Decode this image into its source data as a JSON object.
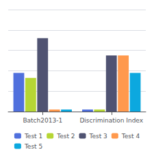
{
  "chart_data": {
    "type": "bar",
    "categories": [
      "Batch2013-1",
      "Discrimination Index"
    ],
    "series": [
      {
        "name": "Test 1",
        "values": [
          0.38,
          0.02
        ]
      },
      {
        "name": "Test 2",
        "values": [
          0.33,
          0.02
        ]
      },
      {
        "name": "Test 3",
        "values": [
          0.72,
          0.55
        ]
      },
      {
        "name": "Test 4",
        "values": [
          0.02,
          0.55
        ]
      },
      {
        "name": "Test 5",
        "values": [
          0.02,
          0.38
        ]
      }
    ],
    "ylim": [
      0,
      1.0
    ],
    "yticks": [
      0,
      0.2,
      0.4,
      0.6,
      0.8,
      1.0
    ],
    "grid": true,
    "legend": "bottom",
    "tick_labels": "x"
  }
}
